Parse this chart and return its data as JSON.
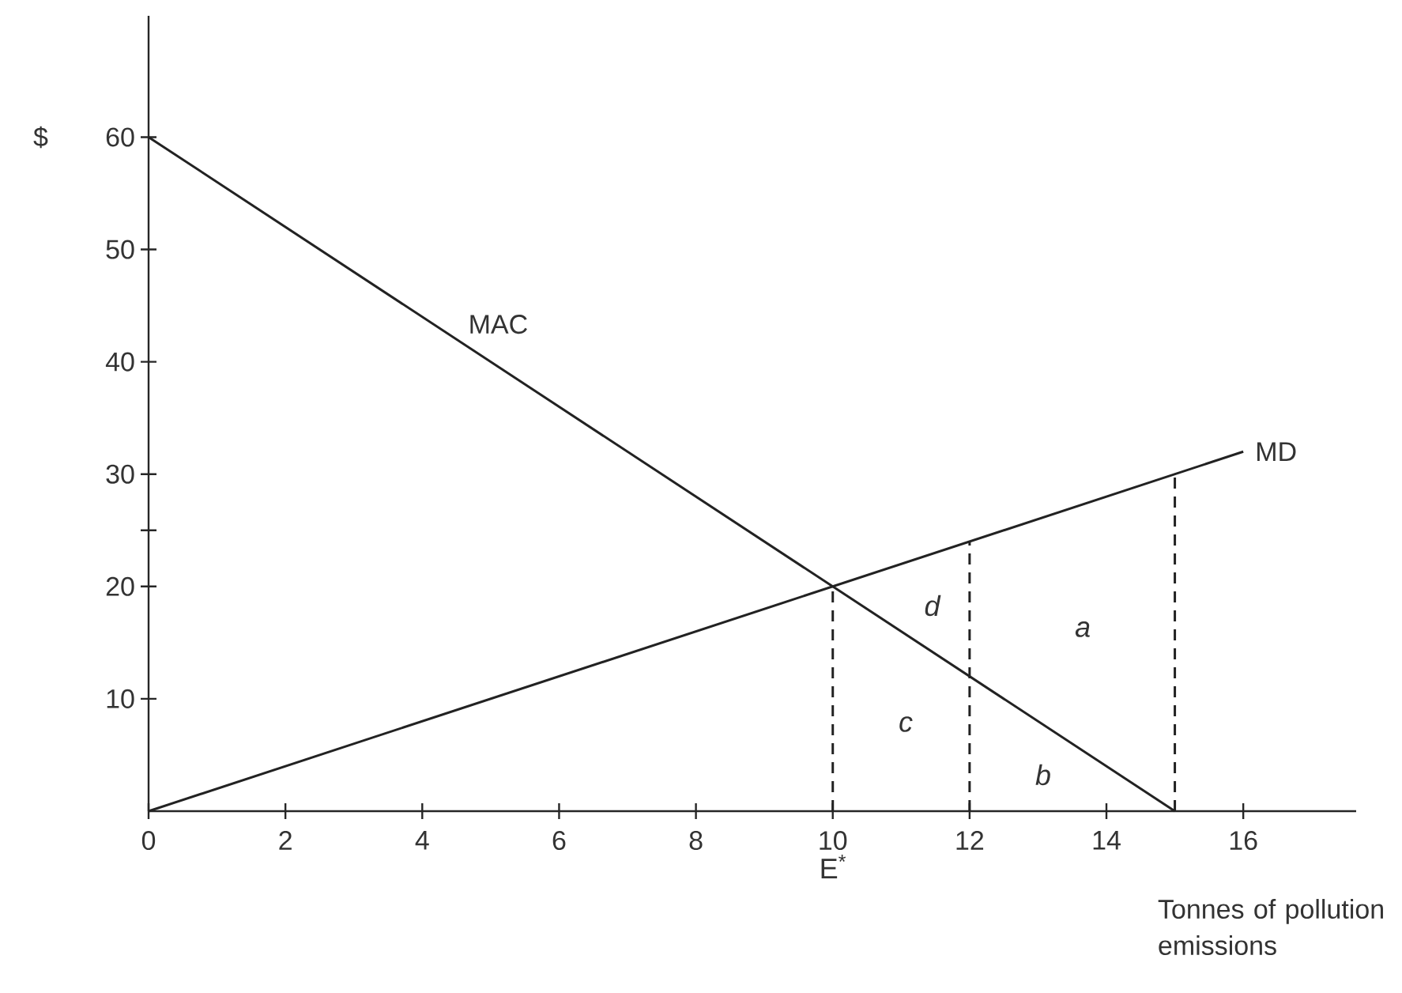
{
  "chart_data": {
    "type": "line",
    "xlabel": "Tonnes of pollution emissions",
    "ylabel": "$",
    "xlim": [
      0,
      17.65
    ],
    "ylim": [
      0,
      70.8
    ],
    "xticks": [
      0,
      2,
      4,
      6,
      8,
      10,
      12,
      14,
      16
    ],
    "yticks": [
      10,
      20,
      {
        "value": 25,
        "label": null
      },
      30,
      40,
      50,
      60
    ],
    "series": [
      {
        "name": "MAC",
        "color": "#222222",
        "x": [
          0,
          15
        ],
        "values": [
          60,
          0
        ]
      },
      {
        "name": "MD",
        "color": "#222222",
        "x": [
          0,
          16
        ],
        "values": [
          0,
          32
        ]
      },
      {
        "color": "#222222",
        "x": [
          10,
          10
        ],
        "values": [
          0,
          20
        ],
        "line_style": "dashed"
      },
      {
        "color": "#222222",
        "x": [
          12,
          12
        ],
        "values": [
          0,
          24
        ],
        "line_style": "dashed"
      },
      {
        "color": "#222222",
        "x": [
          15,
          15
        ],
        "values": [
          0,
          30
        ],
        "line_style": "dashed"
      }
    ],
    "annotations": [
      "*d*",
      "*a*",
      "*c*",
      "*b*",
      "E$^{*}$"
    ],
    "grid": false,
    "legend": false,
    "marker": "none",
    "line_style": "solid"
  }
}
